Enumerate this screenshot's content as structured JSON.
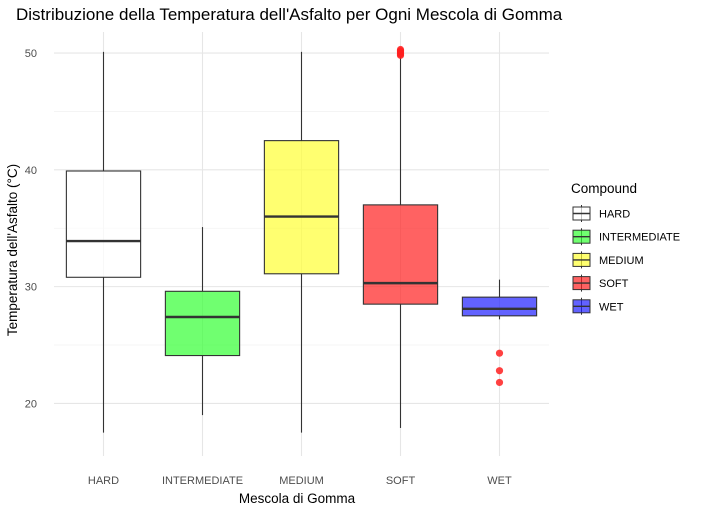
{
  "chart_data": {
    "type": "boxplot",
    "title": "Distribuzione della Temperatura dell'Asfalto per Ogni Mescola di Gomma",
    "xlabel": "Mescola di Gomma",
    "ylabel": "Temperatura dell'Asfalto (°C)",
    "ylim": [
      15.5,
      51.8
    ],
    "yticks": [
      20,
      30,
      40,
      50
    ],
    "grid": true,
    "legend_title": "Compound",
    "legend_position": "right",
    "categories": [
      "HARD",
      "INTERMEDIATE",
      "MEDIUM",
      "SOFT",
      "WET"
    ],
    "boxes": [
      {
        "name": "HARD",
        "color": "#FFFFFF",
        "whisker_low": 17.5,
        "q1": 30.8,
        "median": 33.9,
        "q3": 39.9,
        "whisker_high": 50.1,
        "outliers": []
      },
      {
        "name": "INTERMEDIATE",
        "color": "#33FF33",
        "whisker_low": 19.0,
        "q1": 24.1,
        "median": 27.4,
        "q3": 29.6,
        "whisker_high": 35.1,
        "outliers": []
      },
      {
        "name": "MEDIUM",
        "color": "#FFFF33",
        "whisker_low": 17.5,
        "q1": 31.1,
        "median": 36.0,
        "q3": 42.5,
        "whisker_high": 50.1,
        "outliers": []
      },
      {
        "name": "SOFT",
        "color": "#FF2020",
        "whisker_low": 17.9,
        "q1": 28.5,
        "median": 30.3,
        "q3": 37.0,
        "whisker_high": 49.7,
        "outliers": [
          49.8,
          49.9,
          50.0,
          50.1,
          50.2,
          50.3
        ]
      },
      {
        "name": "WET",
        "color": "#2020FF",
        "whisker_low": 27.2,
        "q1": 27.5,
        "median": 28.1,
        "q3": 29.1,
        "whisker_high": 30.6,
        "outliers": [
          24.3,
          22.8,
          21.8
        ]
      }
    ],
    "box_opacity": 0.7,
    "outlier_color": "#FF2020"
  }
}
